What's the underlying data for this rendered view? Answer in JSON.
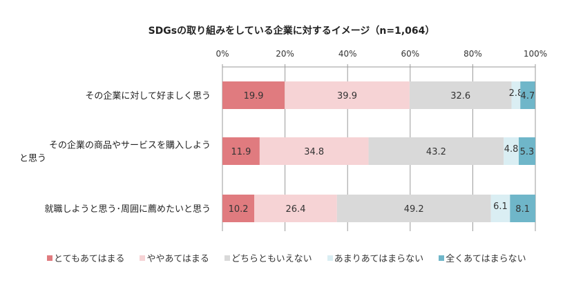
{
  "chart_data": {
    "type": "bar",
    "orientation": "horizontal-stacked-100",
    "title": "SDGsの取り組みをしている企業に対するイメージ（n=1,064）",
    "categories": [
      "その企業に対して好ましく思う",
      "その企業の商品やサービスを購入しようと思う",
      "就職しようと思う･周囲に薦めたいと思う"
    ],
    "category_lines": [
      [
        "その企業に対して好ましく思う"
      ],
      [
        "その企業の商品やサービスを購入しよう",
        "と思う"
      ],
      [
        "就職しようと思う･周囲に薦めたいと思う"
      ]
    ],
    "series": [
      {
        "name": "とてもあてはまる",
        "color": "#e07b7f",
        "values": [
          19.9,
          11.9,
          10.2
        ]
      },
      {
        "name": "ややあてはまる",
        "color": "#f6d3d5",
        "values": [
          39.9,
          34.8,
          26.4
        ]
      },
      {
        "name": "どちらともいえない",
        "color": "#d9d9d9",
        "values": [
          32.6,
          43.2,
          49.2
        ]
      },
      {
        "name": "あまりあてはまらない",
        "color": "#daeef3",
        "values": [
          2.8,
          4.8,
          6.1
        ]
      },
      {
        "name": "全くあてはまらない",
        "color": "#6fb6c9",
        "values": [
          4.7,
          5.3,
          8.1
        ]
      }
    ],
    "xticks": [
      "0%",
      "20%",
      "40%",
      "60%",
      "80%",
      "100%"
    ],
    "xlim": [
      0,
      100
    ],
    "grid": true,
    "legend": "bottom"
  }
}
